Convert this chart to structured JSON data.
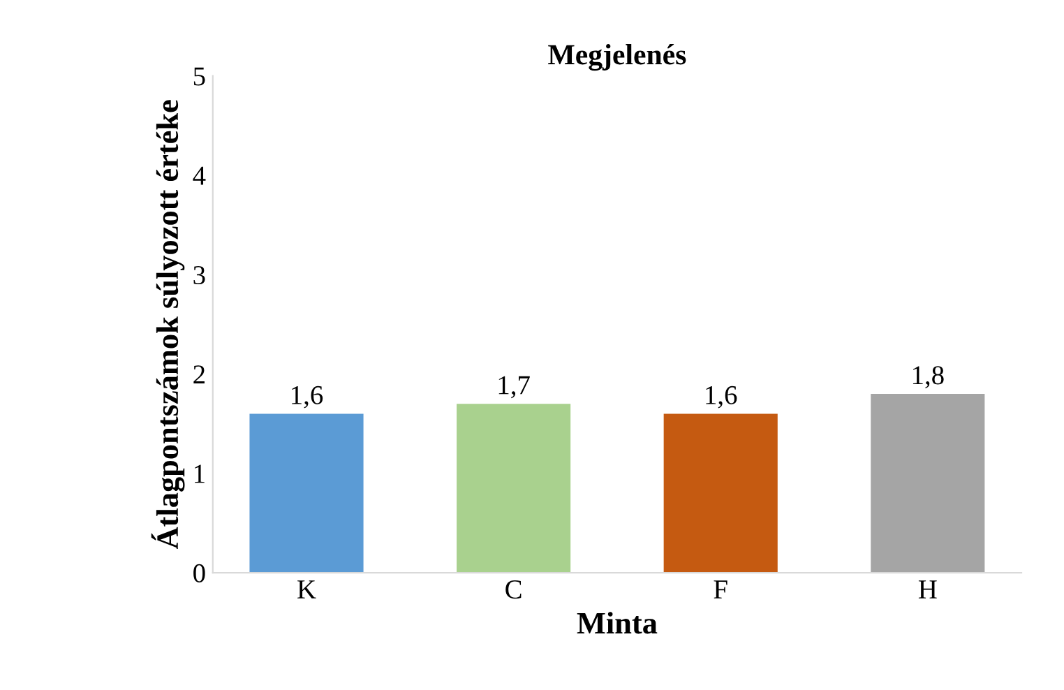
{
  "chart_data": {
    "type": "bar",
    "title": "Megjelenés",
    "xlabel": "Minta",
    "ylabel": "Átlagpontszámok súlyozott értéke",
    "categories": [
      "K",
      "C",
      "F",
      "H"
    ],
    "values": [
      1.6,
      1.7,
      1.6,
      1.8
    ],
    "colors": [
      "#5b9bd5",
      "#a9d18e",
      "#c55a11",
      "#a5a5a5"
    ],
    "ylim": [
      0,
      5
    ],
    "yticks": [
      0,
      1,
      2,
      3,
      4,
      5
    ],
    "grid": false,
    "value_labels": [
      "1,6",
      "1,7",
      "1,6",
      "1,8"
    ]
  }
}
